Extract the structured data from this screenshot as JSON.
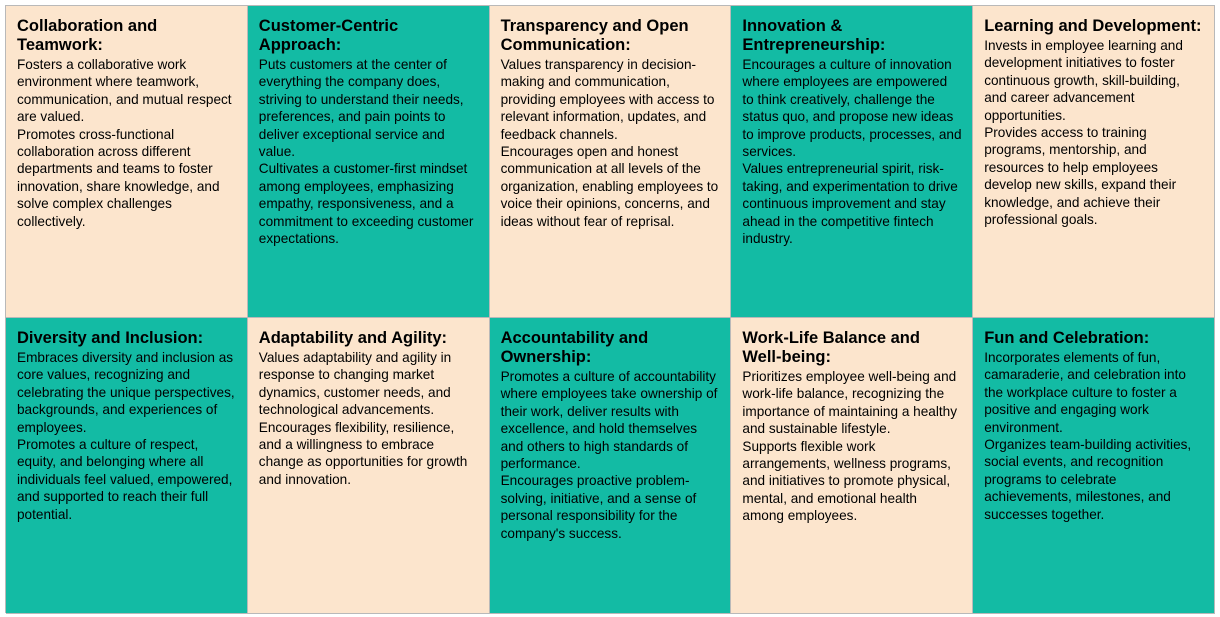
{
  "colors": {
    "peach": "#fce5cd",
    "teal": "#13bba4",
    "border": "#b9b9b9"
  },
  "cells": [
    {
      "title": "Collaboration and Teamwork:",
      "body": "Fosters a collaborative work environment where teamwork, communication, and mutual respect are valued.\nPromotes cross-functional collaboration across different departments and teams to foster innovation, share knowledge, and solve complex challenges collectively.",
      "color": "peach"
    },
    {
      "title": "Customer-Centric Approach:",
      "body": "Puts customers at the center of everything the company does, striving to understand their needs, preferences, and pain points to deliver exceptional service and value.\nCultivates a customer-first mindset among employees, emphasizing empathy, responsiveness, and a commitment to exceeding customer expectations.",
      "color": "teal"
    },
    {
      "title": "Transparency and Open Communication:",
      "body": "Values transparency in decision-making and communication, providing employees with access to relevant information, updates, and feedback channels.\nEncourages open and honest communication at all levels of the organization, enabling employees to voice their opinions, concerns, and ideas without fear of reprisal.",
      "color": "peach"
    },
    {
      "title": "Innovation & Entrepreneurship:",
      "body": "Encourages a culture of innovation where employees are empowered to think creatively, challenge the status quo, and propose new ideas to improve products, processes, and services.\nValues entrepreneurial spirit, risk-taking, and experimentation to drive continuous improvement and stay ahead in the competitive fintech industry.",
      "color": "teal"
    },
    {
      "title": "Learning and Development:",
      "body": "Invests in employee learning and development initiatives to foster continuous growth, skill-building, and career advancement opportunities.\nProvides access to training programs, mentorship, and resources to help employees develop new skills, expand their knowledge, and achieve their professional goals.",
      "color": "peach"
    },
    {
      "title": "Diversity and Inclusion:",
      "body": "Embraces diversity and inclusion as core values, recognizing and celebrating the unique perspectives, backgrounds, and experiences of employees.\nPromotes a culture of respect, equity, and belonging where all individuals feel valued, empowered, and supported to reach their full potential.",
      "color": "teal"
    },
    {
      "title": "Adaptability and Agility:",
      "body": "Values adaptability and agility in response to changing market dynamics, customer needs, and technological advancements.\nEncourages flexibility, resilience, and a willingness to embrace change as opportunities for growth and innovation.",
      "color": "peach"
    },
    {
      "title": "Accountability and Ownership:",
      "body": "Promotes a culture of accountability where employees take ownership of their work, deliver results with excellence, and hold themselves and others to high standards of performance.\nEncourages proactive problem-solving, initiative, and a sense of personal responsibility for the company's success.",
      "color": "teal"
    },
    {
      "title": "Work-Life Balance and Well-being:",
      "body": "Prioritizes employee well-being and work-life balance, recognizing the importance of maintaining a healthy and sustainable lifestyle.\nSupports flexible work arrangements, wellness programs, and initiatives to promote physical, mental, and emotional health among employees.",
      "color": "peach"
    },
    {
      "title": "Fun and Celebration:",
      "body": "Incorporates elements of fun, camaraderie, and celebration into the workplace culture to foster a positive and engaging work environment.\nOrganizes team-building activities, social events, and recognition programs to celebrate achievements, milestones, and successes together.",
      "color": "teal"
    }
  ]
}
